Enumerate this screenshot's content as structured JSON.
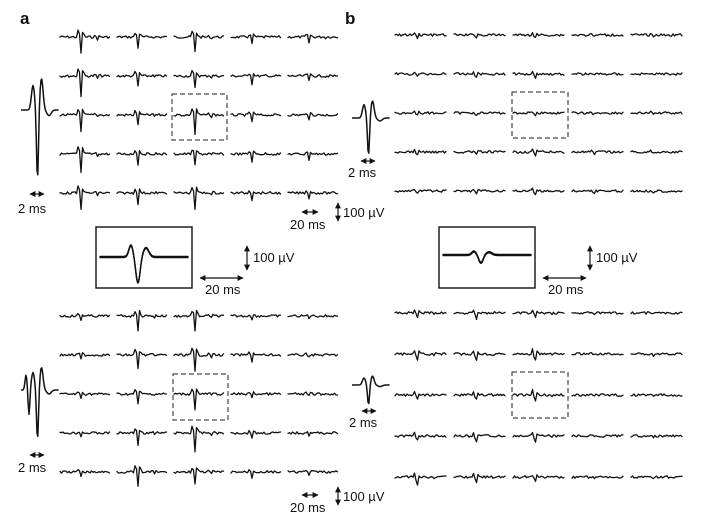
{
  "figure": {
    "panel_a_label": "a",
    "panel_b_label": "b",
    "grid_rows": 5,
    "grid_cols": 5
  },
  "scale_bars": {
    "waveform_time": "2 ms",
    "trace_time": "20 ms",
    "amplitude": "100 µV"
  },
  "colors": {
    "trace": "#111111",
    "background": "#ffffff"
  }
}
